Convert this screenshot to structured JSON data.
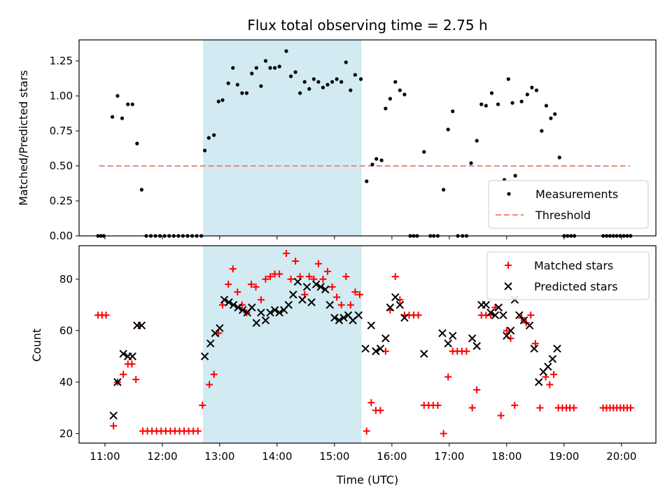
{
  "chart_data": {
    "title": "Flux total observing time = 2.75 h",
    "xlabel": "Time (UTC)",
    "xticks": [
      "11:00",
      "12:00",
      "13:00",
      "14:00",
      "15:00",
      "16:00",
      "17:00",
      "18:00",
      "19:00",
      "20:00"
    ],
    "xlim_hours": [
      10.55,
      20.6
    ],
    "highlight_span_hours": [
      12.71,
      15.47
    ],
    "highlight_color": "#add8e6",
    "top": {
      "type": "scatter",
      "ylabel": "Matched/Predicted stars",
      "ylim": [
        0,
        1.4
      ],
      "yticks": [
        "0.00",
        "0.25",
        "0.50",
        "0.75",
        "1.00",
        "1.25"
      ],
      "threshold": 0.5,
      "threshold_color": "#ff7f7f",
      "threshold_x": [
        10.9,
        20.15
      ],
      "legend": {
        "placement": "lower-right",
        "measurements": "Measurements",
        "threshold": "Threshold"
      },
      "measurements": [
        [
          10.88,
          0
        ],
        [
          10.93,
          0
        ],
        [
          10.98,
          0
        ],
        [
          11.13,
          0.85
        ],
        [
          11.22,
          1.0
        ],
        [
          11.3,
          0.84
        ],
        [
          11.4,
          0.94
        ],
        [
          11.48,
          0.94
        ],
        [
          11.56,
          0.66
        ],
        [
          11.64,
          0.33
        ],
        [
          11.72,
          0
        ],
        [
          11.8,
          0
        ],
        [
          11.88,
          0
        ],
        [
          11.96,
          0
        ],
        [
          12.04,
          0
        ],
        [
          12.12,
          0
        ],
        [
          12.2,
          0
        ],
        [
          12.28,
          0
        ],
        [
          12.36,
          0
        ],
        [
          12.44,
          0
        ],
        [
          12.52,
          0
        ],
        [
          12.6,
          0
        ],
        [
          12.68,
          0
        ],
        [
          12.74,
          0.61
        ],
        [
          12.81,
          0.7
        ],
        [
          12.9,
          0.72
        ],
        [
          12.98,
          0.96
        ],
        [
          13.05,
          0.97
        ],
        [
          13.15,
          1.09
        ],
        [
          13.23,
          1.2
        ],
        [
          13.31,
          1.08
        ],
        [
          13.39,
          1.02
        ],
        [
          13.47,
          1.02
        ],
        [
          13.56,
          1.16
        ],
        [
          13.64,
          1.2
        ],
        [
          13.72,
          1.07
        ],
        [
          13.8,
          1.25
        ],
        [
          13.88,
          1.2
        ],
        [
          13.96,
          1.2
        ],
        [
          14.04,
          1.21
        ],
        [
          14.16,
          1.32
        ],
        [
          14.24,
          1.14
        ],
        [
          14.32,
          1.17
        ],
        [
          14.4,
          1.02
        ],
        [
          14.48,
          1.1
        ],
        [
          14.56,
          1.05
        ],
        [
          14.64,
          1.12
        ],
        [
          14.72,
          1.1
        ],
        [
          14.8,
          1.06
        ],
        [
          14.88,
          1.08
        ],
        [
          14.96,
          1.1
        ],
        [
          15.04,
          1.12
        ],
        [
          15.12,
          1.1
        ],
        [
          15.2,
          1.24
        ],
        [
          15.28,
          1.04
        ],
        [
          15.36,
          1.15
        ],
        [
          15.46,
          1.12
        ],
        [
          15.56,
          0.39
        ],
        [
          15.66,
          0.51
        ],
        [
          15.73,
          0.55
        ],
        [
          15.82,
          0.54
        ],
        [
          15.89,
          0.91
        ],
        [
          15.97,
          0.98
        ],
        [
          16.06,
          1.1
        ],
        [
          16.14,
          1.04
        ],
        [
          16.22,
          1.01
        ],
        [
          16.32,
          0
        ],
        [
          16.38,
          0
        ],
        [
          16.44,
          0
        ],
        [
          16.56,
          0.6
        ],
        [
          16.67,
          0
        ],
        [
          16.73,
          0
        ],
        [
          16.8,
          0
        ],
        [
          16.9,
          0.33
        ],
        [
          16.98,
          0.76
        ],
        [
          17.06,
          0.89
        ],
        [
          17.15,
          0
        ],
        [
          17.23,
          0
        ],
        [
          17.3,
          0
        ],
        [
          17.38,
          0.52
        ],
        [
          17.48,
          0.68
        ],
        [
          17.56,
          0.94
        ],
        [
          17.64,
          0.93
        ],
        [
          17.74,
          1.02
        ],
        [
          17.85,
          0.94
        ],
        [
          17.96,
          0.4
        ],
        [
          18.03,
          1.12
        ],
        [
          18.1,
          0.95
        ],
        [
          18.15,
          0.43
        ],
        [
          18.26,
          0.96
        ],
        [
          18.36,
          1.01
        ],
        [
          18.44,
          1.06
        ],
        [
          18.52,
          1.04
        ],
        [
          18.61,
          0.75
        ],
        [
          18.69,
          0.93
        ],
        [
          18.77,
          0.84
        ],
        [
          18.84,
          0.87
        ],
        [
          18.92,
          0.56
        ],
        [
          19.0,
          0
        ],
        [
          19.06,
          0
        ],
        [
          19.12,
          0
        ],
        [
          19.18,
          0
        ],
        [
          19.68,
          0
        ],
        [
          19.74,
          0
        ],
        [
          19.8,
          0
        ],
        [
          19.86,
          0
        ],
        [
          19.92,
          0
        ],
        [
          19.98,
          0
        ],
        [
          20.04,
          0
        ],
        [
          20.1,
          0
        ],
        [
          20.16,
          0
        ]
      ]
    },
    "bottom": {
      "type": "scatter",
      "ylabel": "Count",
      "ylim": [
        16.3,
        93
      ],
      "yticks": [
        "20",
        "40",
        "60",
        "80"
      ],
      "legend": {
        "placement": "upper-right",
        "matched": "Matched stars",
        "predicted": "Predicted stars"
      },
      "matched_color": "#ff0000",
      "predicted_color": "#000000",
      "matched": [
        [
          10.88,
          66
        ],
        [
          10.95,
          66
        ],
        [
          11.02,
          66
        ],
        [
          11.15,
          23
        ],
        [
          11.22,
          40
        ],
        [
          11.32,
          43
        ],
        [
          11.4,
          47
        ],
        [
          11.47,
          47
        ],
        [
          11.54,
          41
        ],
        [
          11.6,
          62
        ],
        [
          11.66,
          21
        ],
        [
          11.74,
          21
        ],
        [
          11.82,
          21
        ],
        [
          11.9,
          21
        ],
        [
          11.98,
          21
        ],
        [
          12.06,
          21
        ],
        [
          12.14,
          21
        ],
        [
          12.22,
          21
        ],
        [
          12.3,
          21
        ],
        [
          12.38,
          21
        ],
        [
          12.46,
          21
        ],
        [
          12.54,
          21
        ],
        [
          12.62,
          21
        ],
        [
          12.7,
          31
        ],
        [
          12.82,
          39
        ],
        [
          12.9,
          43
        ],
        [
          12.98,
          59
        ],
        [
          13.05,
          70
        ],
        [
          13.15,
          78
        ],
        [
          13.23,
          84
        ],
        [
          13.31,
          75
        ],
        [
          13.39,
          70
        ],
        [
          13.47,
          67
        ],
        [
          13.55,
          78
        ],
        [
          13.63,
          77
        ],
        [
          13.72,
          72
        ],
        [
          13.8,
          80
        ],
        [
          13.88,
          81
        ],
        [
          13.96,
          82
        ],
        [
          14.04,
          82
        ],
        [
          14.16,
          90
        ],
        [
          14.24,
          80
        ],
        [
          14.32,
          87
        ],
        [
          14.4,
          81
        ],
        [
          14.48,
          74
        ],
        [
          14.56,
          81
        ],
        [
          14.64,
          80
        ],
        [
          14.72,
          86
        ],
        [
          14.8,
          80
        ],
        [
          14.88,
          83
        ],
        [
          14.96,
          77
        ],
        [
          15.04,
          73
        ],
        [
          15.12,
          70
        ],
        [
          15.2,
          81
        ],
        [
          15.28,
          70
        ],
        [
          15.36,
          75
        ],
        [
          15.44,
          74
        ],
        [
          15.56,
          21
        ],
        [
          15.64,
          32
        ],
        [
          15.72,
          29
        ],
        [
          15.8,
          29
        ],
        [
          15.89,
          52
        ],
        [
          15.97,
          68
        ],
        [
          16.06,
          81
        ],
        [
          16.14,
          72
        ],
        [
          16.22,
          66
        ],
        [
          16.3,
          66
        ],
        [
          16.38,
          66
        ],
        [
          16.46,
          66
        ],
        [
          16.56,
          31
        ],
        [
          16.64,
          31
        ],
        [
          16.72,
          31
        ],
        [
          16.8,
          31
        ],
        [
          16.9,
          20
        ],
        [
          16.98,
          42
        ],
        [
          17.06,
          52
        ],
        [
          17.14,
          52
        ],
        [
          17.22,
          52
        ],
        [
          17.3,
          52
        ],
        [
          17.4,
          30
        ],
        [
          17.48,
          37
        ],
        [
          17.56,
          66
        ],
        [
          17.64,
          66
        ],
        [
          17.72,
          66
        ],
        [
          17.8,
          69
        ],
        [
          17.9,
          27
        ],
        [
          18.0,
          60
        ],
        [
          18.07,
          57
        ],
        [
          18.14,
          31
        ],
        [
          18.26,
          65
        ],
        [
          18.34,
          63
        ],
        [
          18.42,
          66
        ],
        [
          18.5,
          55
        ],
        [
          18.58,
          30
        ],
        [
          18.68,
          42
        ],
        [
          18.75,
          39
        ],
        [
          18.82,
          43
        ],
        [
          18.9,
          30
        ],
        [
          18.97,
          30
        ],
        [
          19.04,
          30
        ],
        [
          19.1,
          30
        ],
        [
          19.17,
          30
        ],
        [
          19.68,
          30
        ],
        [
          19.74,
          30
        ],
        [
          19.8,
          30
        ],
        [
          19.86,
          30
        ],
        [
          19.92,
          30
        ],
        [
          19.98,
          30
        ],
        [
          20.04,
          30
        ],
        [
          20.1,
          30
        ],
        [
          20.16,
          30
        ]
      ],
      "predicted": [
        [
          11.15,
          27
        ],
        [
          11.22,
          40
        ],
        [
          11.32,
          51
        ],
        [
          11.4,
          50
        ],
        [
          11.48,
          50
        ],
        [
          11.56,
          62
        ],
        [
          11.64,
          62
        ],
        [
          12.74,
          50
        ],
        [
          12.84,
          55
        ],
        [
          12.92,
          59
        ],
        [
          13.0,
          61
        ],
        [
          13.08,
          72
        ],
        [
          13.16,
          71
        ],
        [
          13.24,
          70
        ],
        [
          13.32,
          69
        ],
        [
          13.4,
          68
        ],
        [
          13.48,
          67
        ],
        [
          13.56,
          69
        ],
        [
          13.64,
          63
        ],
        [
          13.72,
          67
        ],
        [
          13.8,
          64
        ],
        [
          13.88,
          67
        ],
        [
          13.96,
          68
        ],
        [
          14.04,
          67
        ],
        [
          14.12,
          68
        ],
        [
          14.2,
          70
        ],
        [
          14.28,
          74
        ],
        [
          14.36,
          79
        ],
        [
          14.44,
          72
        ],
        [
          14.52,
          77
        ],
        [
          14.6,
          71
        ],
        [
          14.68,
          78
        ],
        [
          14.76,
          77
        ],
        [
          14.84,
          76
        ],
        [
          14.92,
          70
        ],
        [
          15.0,
          65
        ],
        [
          15.08,
          64
        ],
        [
          15.16,
          65
        ],
        [
          15.24,
          66
        ],
        [
          15.32,
          64
        ],
        [
          15.42,
          66
        ],
        [
          15.54,
          53
        ],
        [
          15.64,
          62
        ],
        [
          15.72,
          52
        ],
        [
          15.8,
          53
        ],
        [
          15.89,
          57
        ],
        [
          15.97,
          69
        ],
        [
          16.06,
          73
        ],
        [
          16.14,
          70
        ],
        [
          16.22,
          65
        ],
        [
          16.56,
          51
        ],
        [
          16.88,
          59
        ],
        [
          16.98,
          55
        ],
        [
          17.06,
          58
        ],
        [
          17.4,
          57
        ],
        [
          17.48,
          54
        ],
        [
          17.56,
          70
        ],
        [
          17.64,
          70
        ],
        [
          17.72,
          67
        ],
        [
          17.8,
          66
        ],
        [
          17.86,
          69
        ],
        [
          17.94,
          66
        ],
        [
          18.0,
          58
        ],
        [
          18.07,
          60
        ],
        [
          18.14,
          72
        ],
        [
          18.22,
          66
        ],
        [
          18.3,
          64
        ],
        [
          18.4,
          62
        ],
        [
          18.48,
          53
        ],
        [
          18.56,
          40
        ],
        [
          18.64,
          44
        ],
        [
          18.72,
          46
        ],
        [
          18.8,
          49
        ],
        [
          18.88,
          53
        ]
      ]
    }
  }
}
